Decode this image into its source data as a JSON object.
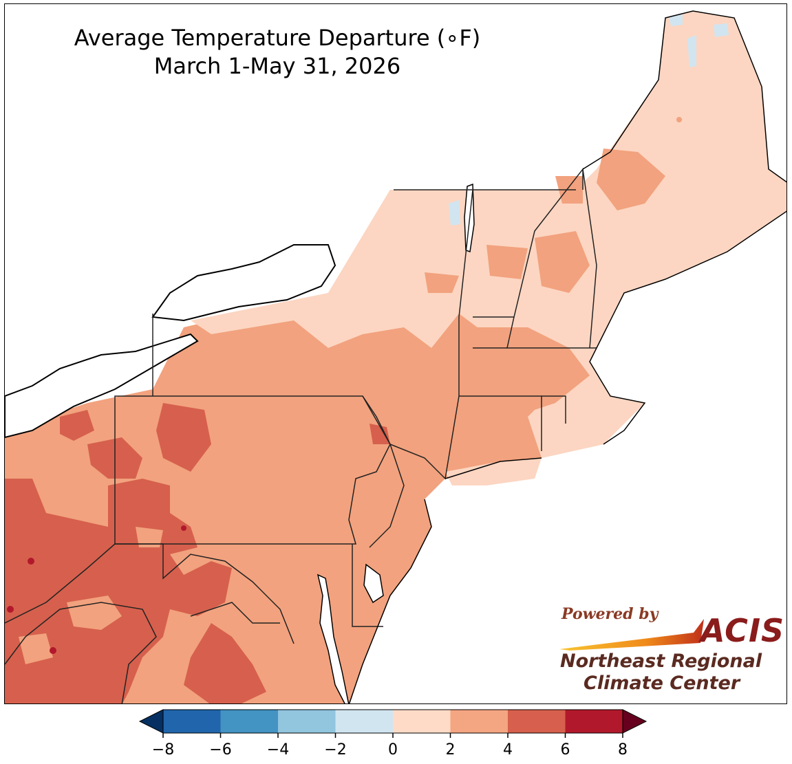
{
  "title": {
    "line1": "Average Temperature Departure (∘F)",
    "line2": "March 1-May 31, 2026"
  },
  "map": {
    "region": "Northeast United States",
    "fill_colors": {
      "range_0_2": "#fcd6c2",
      "range_2_4": "#f2a27e",
      "range_4_6": "#d6604d",
      "range_6_8": "#b2182b",
      "range_neg2_0": "#d1e5f0",
      "water_lake": "#ffffff"
    },
    "state_outlines": [
      "NY",
      "PA",
      "NJ",
      "DE",
      "MD",
      "VT",
      "NH",
      "ME",
      "MA",
      "CT",
      "RI",
      "WV",
      "VA",
      "OH"
    ]
  },
  "colorbar": {
    "ticks": [
      "−8",
      "−6",
      "−4",
      "−2",
      "0",
      "2",
      "4",
      "6",
      "8"
    ],
    "colors": [
      "#2166ac",
      "#4393c3",
      "#92c5de",
      "#d1e5f0",
      "#fddbc7",
      "#f4a582",
      "#d6604d",
      "#b2182b"
    ],
    "under_color": "#053061",
    "over_color": "#67001f"
  },
  "logo": {
    "powered_by": "Powered by",
    "acis": "ACIS",
    "org_line1": "Northeast Regional",
    "org_line2": "Climate Center"
  }
}
